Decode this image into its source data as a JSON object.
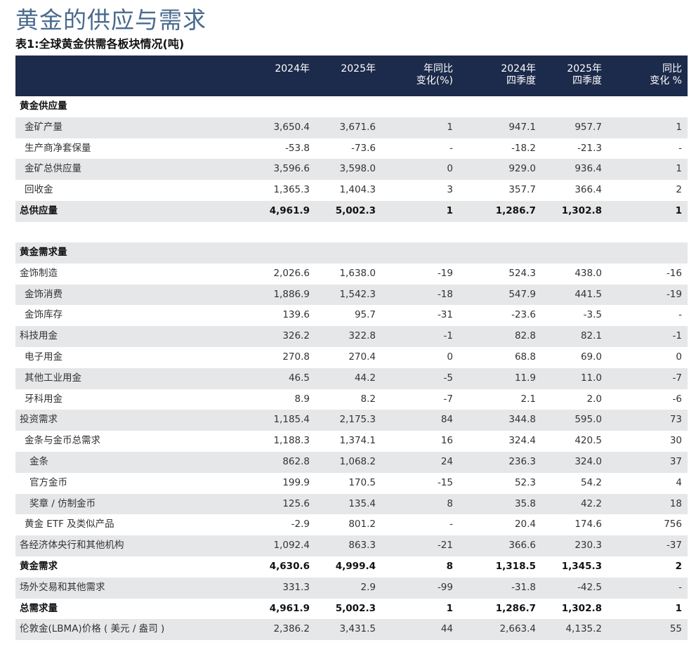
{
  "title": "黄金的供应与需求",
  "subtitle": "表1:全球黄金供需各板块情况(吨)",
  "table": {
    "header": [
      [
        "2024年"
      ],
      [
        "2025年"
      ],
      [
        "年同比",
        "变化(%)"
      ],
      [
        "2024年",
        "四季度"
      ],
      [
        "2025年",
        "四季度"
      ],
      [
        "同比",
        "变化 %"
      ]
    ],
    "rows": [
      [
        "黄金供应量"
      ],
      [
        "金矿产量",
        "3,650.4",
        "3,671.6",
        "1",
        "947.1",
        "957.7",
        "1"
      ],
      [
        "生产商净套保量",
        "-53.8",
        "-73.6",
        "-",
        "-18.2",
        "-21.3",
        "-"
      ],
      [
        "金矿总供应量",
        "3,596.6",
        "3,598.0",
        "0",
        "929.0",
        "936.4",
        "1"
      ],
      [
        "回收金",
        "1,365.3",
        "1,404.3",
        "3",
        "357.7",
        "366.4",
        "2"
      ],
      [
        "总供应量",
        "4,961.9",
        "5,002.3",
        "1",
        "1,286.7",
        "1,302.8",
        "1"
      ],
      [
        "黄金需求量"
      ],
      [
        "金饰制造",
        "2,026.6",
        "1,638.0",
        "-19",
        "524.3",
        "438.0",
        "-16"
      ],
      [
        "金饰消费",
        "1,886.9",
        "1,542.3",
        "-18",
        "547.9",
        "441.5",
        "-19"
      ],
      [
        "金饰库存",
        "139.6",
        "95.7",
        "-31",
        "-23.6",
        "-3.5",
        "-"
      ],
      [
        "科技用金",
        "326.2",
        "322.8",
        "-1",
        "82.8",
        "82.1",
        "-1"
      ],
      [
        "电子用金",
        "270.8",
        "270.4",
        "0",
        "68.8",
        "69.0",
        "0"
      ],
      [
        "其他工业用金",
        "46.5",
        "44.2",
        "-5",
        "11.9",
        "11.0",
        "-7"
      ],
      [
        "牙科用金",
        "8.9",
        "8.2",
        "-7",
        "2.1",
        "2.0",
        "-6"
      ],
      [
        "投资需求",
        "1,185.4",
        "2,175.3",
        "84",
        "344.8",
        "595.0",
        "73"
      ],
      [
        "金条与金币总需求",
        "1,188.3",
        "1,374.1",
        "16",
        "324.4",
        "420.5",
        "30"
      ],
      [
        "金条",
        "862.8",
        "1,068.2",
        "24",
        "236.3",
        "324.0",
        "37"
      ],
      [
        "官方金币",
        "199.9",
        "170.5",
        "-15",
        "52.3",
        "54.2",
        "4"
      ],
      [
        "奖章 / 仿制金币",
        "125.6",
        "135.4",
        "8",
        "35.8",
        "42.2",
        "18"
      ],
      [
        "黄金 ETF 及类似产品",
        "-2.9",
        "801.2",
        "-",
        "20.4",
        "174.6",
        "756"
      ],
      [
        "各经济体央行和其他机构",
        "1,092.4",
        "863.3",
        "-21",
        "366.6",
        "230.3",
        "-37"
      ],
      [
        "黄金需求",
        "4,630.6",
        "4,999.4",
        "8",
        "1,318.5",
        "1,345.3",
        "2"
      ],
      [
        "场外交易和其他需求",
        "331.3",
        "2.9",
        "-99",
        "-31.8",
        "-42.5",
        "-"
      ],
      [
        "总需求量",
        "4,961.9",
        "5,002.3",
        "1",
        "1,286.7",
        "1,302.8",
        "1"
      ],
      [
        "伦敦金(LBMA)价格 ( 美元 / 盎司 )",
        "2,386.2",
        "3,431.5",
        "44",
        "2,663.4",
        "4,135.2",
        "55"
      ]
    ]
  }
}
